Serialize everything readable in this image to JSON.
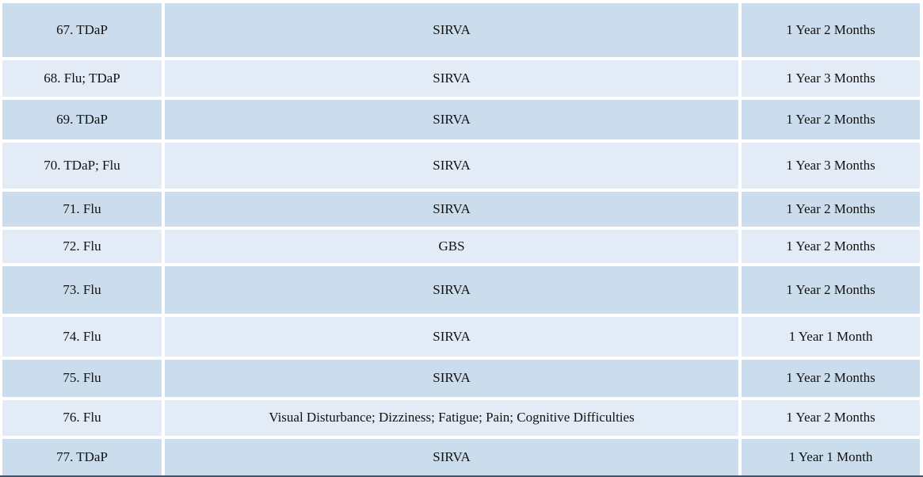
{
  "table": {
    "description": "Vaccine injury claims table rows 67-77",
    "columns": [
      "vaccines",
      "injury",
      "duration"
    ],
    "colors": {
      "row_dark": "#cbddec",
      "row_light": "#e3ecf6",
      "gap": "#ffffff",
      "text": "#111111",
      "bottom_border": "#44546a"
    },
    "rows": [
      {
        "vaccines": "67. TDaP",
        "injury": "SIRVA",
        "duration": "1 Year 2 Months"
      },
      {
        "vaccines": "68. Flu; TDaP",
        "injury": "SIRVA",
        "duration": "1 Year 3 Months"
      },
      {
        "vaccines": "69. TDaP",
        "injury": "SIRVA",
        "duration": "1 Year 2 Months"
      },
      {
        "vaccines": "70. TDaP; Flu",
        "injury": "SIRVA",
        "duration": "1 Year 3 Months"
      },
      {
        "vaccines": "71. Flu",
        "injury": "SIRVA",
        "duration": "1 Year 2 Months"
      },
      {
        "vaccines": "72. Flu",
        "injury": "GBS",
        "duration": "1 Year 2 Months"
      },
      {
        "vaccines": "73. Flu",
        "injury": "SIRVA",
        "duration": "1 Year 2 Months"
      },
      {
        "vaccines": "74. Flu",
        "injury": "SIRVA",
        "duration": "1 Year 1 Month"
      },
      {
        "vaccines": "75. Flu",
        "injury": "SIRVA",
        "duration": "1 Year 2 Months"
      },
      {
        "vaccines": "76. Flu",
        "injury": "Visual Disturbance; Dizziness; Fatigue; Pain; Cognitive Difficulties",
        "duration": "1 Year 2 Months"
      },
      {
        "vaccines": "77. TDaP",
        "injury": "SIRVA",
        "duration": "1 Year 1 Month"
      }
    ]
  }
}
